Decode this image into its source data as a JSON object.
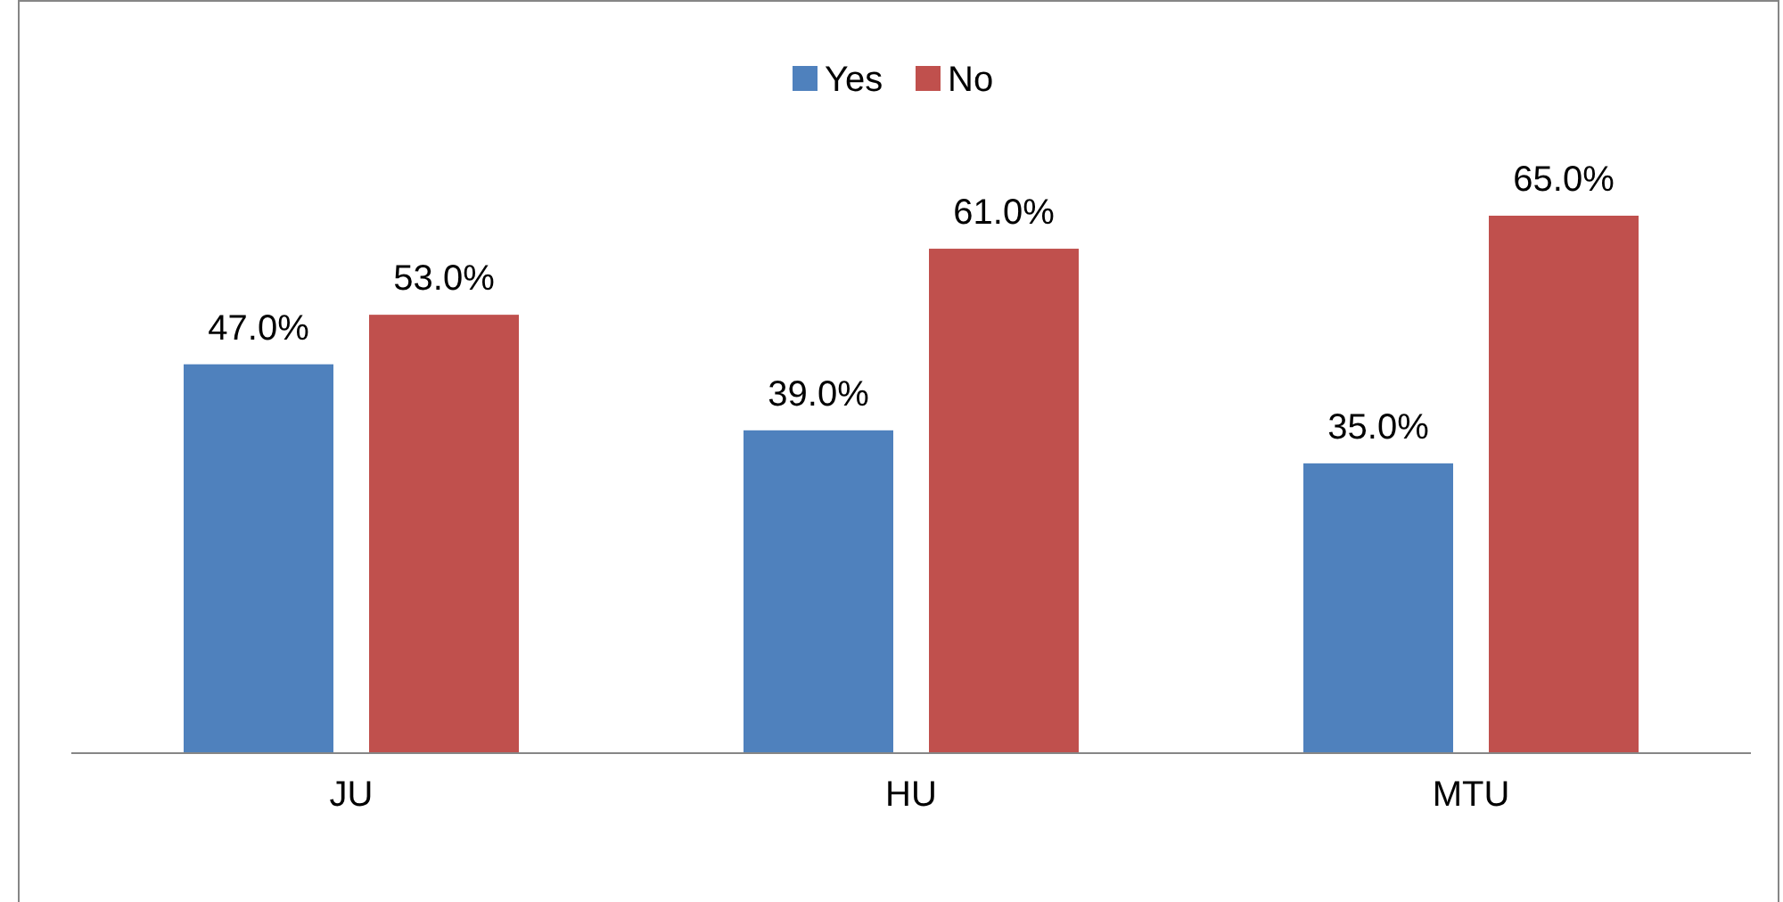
{
  "chart_data": {
    "type": "bar",
    "categories": [
      "JU",
      "HU",
      "MTU"
    ],
    "series": [
      {
        "name": "Yes",
        "color": "#4f81bd",
        "values": [
          47.0,
          39.0,
          35.0
        ],
        "value_labels": [
          "47.0%",
          "39.0%",
          "35.0%"
        ]
      },
      {
        "name": "No",
        "color": "#c0504d",
        "values": [
          53.0,
          61.0,
          65.0
        ],
        "value_labels": [
          "53.0%",
          "61.0%",
          "65.0%"
        ]
      }
    ],
    "legend": "top",
    "grid": false
  }
}
